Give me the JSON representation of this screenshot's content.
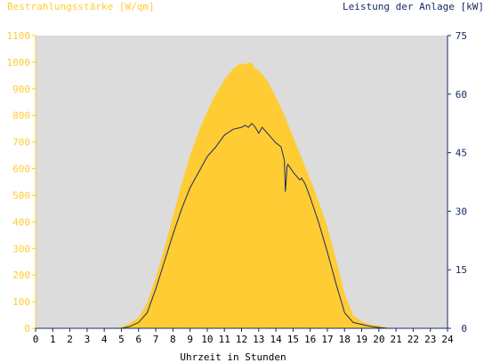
{
  "chart_data": {
    "type": "area",
    "xlabel": "Uhrzeit in Stunden",
    "ylabel_left": "Bestrahlungsstärke [W/qm]",
    "ylabel_right": "Leistung der Anlage [kW]",
    "x_ticks": [
      "0",
      "1",
      "2",
      "3",
      "4",
      "5",
      "6",
      "7",
      "8",
      "9",
      "10",
      "11",
      "12",
      "13",
      "14",
      "15",
      "16",
      "17",
      "18",
      "19",
      "20",
      "21",
      "22",
      "23",
      "24"
    ],
    "xlim": [
      0,
      24
    ],
    "ylim_left": [
      0,
      1100
    ],
    "ylim_right": [
      0,
      75
    ],
    "left_ticks": [
      "0",
      "100",
      "200",
      "300",
      "400",
      "500",
      "600",
      "700",
      "800",
      "900",
      "1000",
      "1100"
    ],
    "right_ticks": [
      "0",
      "15",
      "30",
      "45",
      "60",
      "75"
    ],
    "grid": false,
    "colors": {
      "irradiance": "#ffcc33",
      "power": "#1a2a66",
      "plot_bg": "#dcdcdc",
      "left_axis_text": "#ffcc33",
      "right_axis_text": "#1a2a66"
    },
    "series": [
      {
        "axis": "left",
        "style": "filled-area",
        "x": [
          0,
          4.5,
          5,
          5.5,
          6,
          6.5,
          7,
          7.5,
          8,
          8.5,
          9,
          9.5,
          10,
          10.5,
          11,
          11.5,
          11.8,
          12,
          12.2,
          12.4,
          12.6,
          12.8,
          13,
          13.5,
          14,
          14.5,
          15,
          15.5,
          16,
          16.5,
          17,
          17.5,
          18,
          18.5,
          19,
          19.5,
          20,
          20.5,
          21,
          24
        ],
        "y": [
          0,
          0,
          5,
          20,
          40,
          95,
          190,
          300,
          420,
          540,
          650,
          740,
          815,
          880,
          935,
          975,
          990,
          995,
          990,
          1000,
          995,
          975,
          970,
          930,
          870,
          800,
          720,
          640,
          560,
          475,
          380,
          260,
          130,
          50,
          25,
          15,
          10,
          3,
          0,
          0
        ]
      },
      {
        "axis": "right",
        "style": "line",
        "x": [
          0,
          5,
          5.5,
          6,
          6.5,
          7,
          7.5,
          8,
          8.5,
          9,
          9.5,
          10,
          10.5,
          11,
          11.5,
          12,
          12.2,
          12.4,
          12.6,
          12.8,
          13,
          13.2,
          13.5,
          13.8,
          14,
          14.3,
          14.5,
          14.55,
          14.6,
          14.65,
          14.7,
          15,
          15.2,
          15.4,
          15.5,
          15.7,
          16,
          16.5,
          17,
          17.5,
          18,
          18.5,
          19,
          19.5,
          20,
          20.5,
          21,
          24
        ],
        "y": [
          0,
          0,
          0.5,
          1.5,
          4,
          10,
          17,
          24,
          30.5,
          36,
          40,
          44,
          46.5,
          49.5,
          51,
          51.5,
          52,
          51.5,
          52.5,
          51.5,
          50,
          51.5,
          50,
          48.5,
          47.5,
          46.5,
          43,
          35,
          38,
          41.5,
          42,
          40,
          39,
          38,
          38.5,
          37,
          33.5,
          27,
          19.5,
          11.5,
          4,
          1.5,
          1,
          0.5,
          0.2,
          0,
          0,
          0
        ]
      }
    ]
  }
}
